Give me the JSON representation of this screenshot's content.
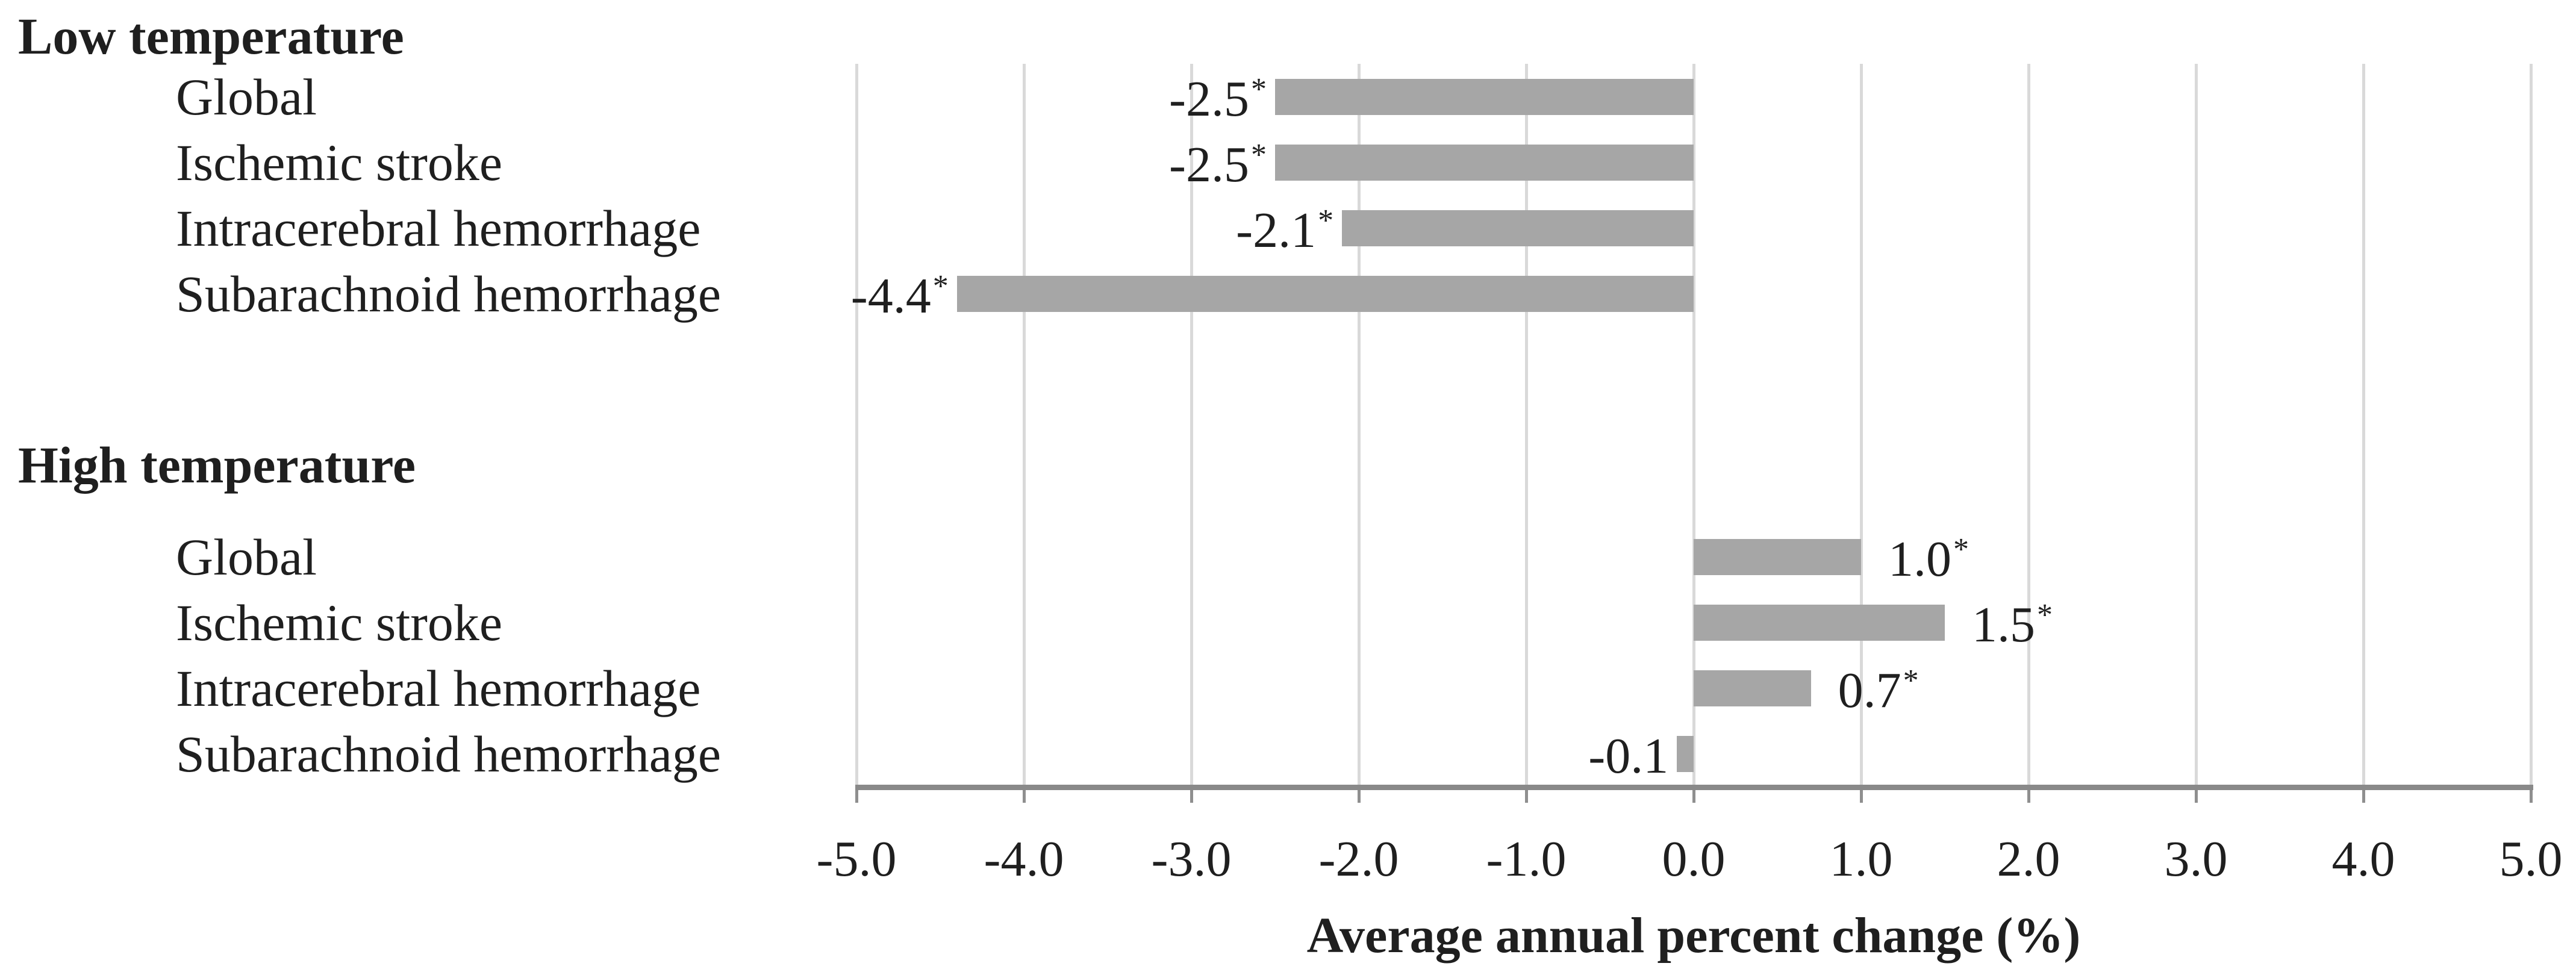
{
  "chart_data": {
    "type": "bar",
    "orientation": "horizontal",
    "title": "",
    "xlabel": "Average annual percent change (%)",
    "ylabel": "",
    "xlim": [
      -5.0,
      5.0
    ],
    "x_tick_step": 1.0,
    "x_tick_labels": [
      "-5.0",
      "-4.0",
      "-3.0",
      "-2.0",
      "-1.0",
      "0.0",
      "1.0",
      "2.0",
      "3.0",
      "4.0",
      "5.0"
    ],
    "grid": true,
    "legend": "none",
    "significance_marker": "*",
    "groups": [
      {
        "label": "Low temperature",
        "rows": [
          {
            "category": "Global",
            "value": -2.5,
            "value_label": "-2.5",
            "significant": true
          },
          {
            "category": "Ischemic stroke",
            "value": -2.5,
            "value_label": "-2.5",
            "significant": true
          },
          {
            "category": "Intracerebral hemorrhage",
            "value": -2.1,
            "value_label": "-2.1",
            "significant": true
          },
          {
            "category": "Subarachnoid hemorrhage",
            "value": -4.4,
            "value_label": "-4.4",
            "significant": true
          }
        ]
      },
      {
        "label": "High temperature",
        "rows": [
          {
            "category": "Global",
            "value": 1.0,
            "value_label": "1.0",
            "significant": true
          },
          {
            "category": "Ischemic stroke",
            "value": 1.5,
            "value_label": "1.5",
            "significant": true
          },
          {
            "category": "Intracerebral hemorrhage",
            "value": 0.7,
            "value_label": "0.7",
            "significant": true
          },
          {
            "category": "Subarachnoid hemorrhage",
            "value": -0.1,
            "value_label": "-0.1",
            "significant": false
          }
        ]
      }
    ],
    "colors": {
      "bar": "#a6a6a6",
      "gridline": "#d9d9d9",
      "axis_line": "#898989",
      "tick": "#8f8f8f",
      "text": "#1f1f1f",
      "background": "#ffffff"
    }
  }
}
